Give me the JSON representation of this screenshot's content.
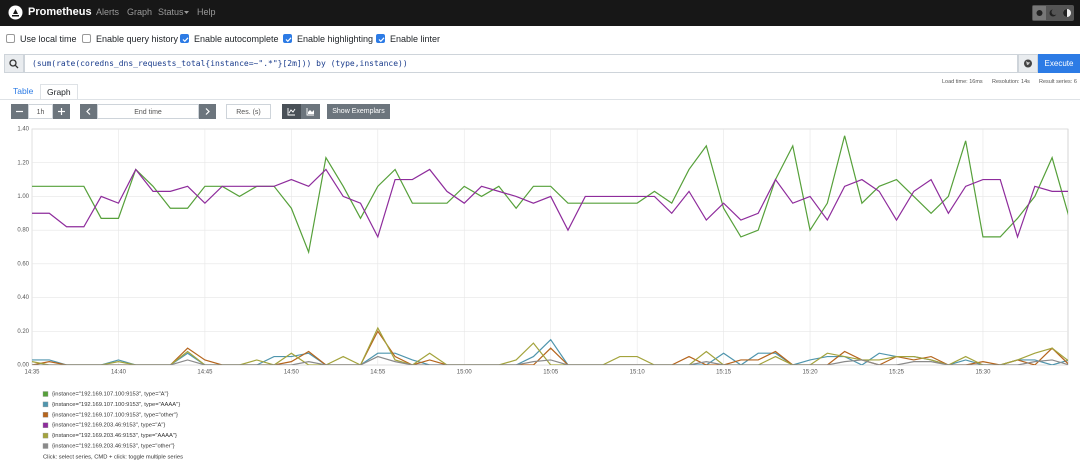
{
  "navbar": {
    "brand": "Prometheus",
    "links": [
      "Alerts",
      "Graph",
      "Status",
      "Help"
    ]
  },
  "options": [
    {
      "label": "Use local time",
      "checked": false
    },
    {
      "label": "Enable query history",
      "checked": false
    },
    {
      "label": "Enable autocomplete",
      "checked": true
    },
    {
      "label": "Enable highlighting",
      "checked": true
    },
    {
      "label": "Enable linter",
      "checked": true
    }
  ],
  "query": {
    "text": "(sum(rate(coredns_dns_requests_total{instance=~\".*\"}[2m])) by (type,instance))",
    "execute": "Execute"
  },
  "stats": [
    "Load time: 16ms",
    "Resolution: 14s",
    "Result series: 6"
  ],
  "tabs": [
    "Table",
    "Graph"
  ],
  "controls": {
    "range": "1h",
    "end_time": "End time",
    "resolution": "Res. (s)",
    "exemplars": "Show Exemplars"
  },
  "chart_data": {
    "type": "line",
    "categories": [
      "14:35",
      null,
      null,
      null,
      null,
      "14:40",
      null,
      null,
      null,
      null,
      "14:45",
      null,
      null,
      null,
      null,
      "14:50",
      null,
      null,
      null,
      null,
      "14:55",
      null,
      null,
      null,
      null,
      "15:00",
      null,
      null,
      null,
      null,
      "15:05",
      null,
      null,
      null,
      null,
      "15:10",
      null,
      null,
      null,
      null,
      "15:15",
      null,
      null,
      null,
      null,
      "15:20",
      null,
      null,
      null,
      null,
      "15:25",
      null,
      null,
      null,
      null,
      "15:30",
      null,
      null,
      null,
      null,
      null
    ],
    "series": [
      {
        "name": "{instance=\"192.169.107.100:9153\", type=\"A\"}",
        "color": "#56a03a",
        "values": [
          1.06,
          1.06,
          1.06,
          1.06,
          0.87,
          0.87,
          1.16,
          1.06,
          0.93,
          0.93,
          1.06,
          1.06,
          1.0,
          1.06,
          1.06,
          0.93,
          0.67,
          1.23,
          1.06,
          0.87,
          1.06,
          1.16,
          0.96,
          0.96,
          0.96,
          1.06,
          1.0,
          1.06,
          0.93,
          1.06,
          1.06,
          0.96,
          0.96,
          0.96,
          0.96,
          0.96,
          1.03,
          0.96,
          1.16,
          1.3,
          0.93,
          0.76,
          0.8,
          1.1,
          1.3,
          0.8,
          0.96,
          1.36,
          0.96,
          1.06,
          1.1,
          1.0,
          0.9,
          1.0,
          1.33,
          0.76,
          0.76,
          0.87,
          1.0,
          1.23,
          0.87
        ]
      },
      {
        "name": "{instance=\"192.169.107.100:9153\", type=\"AAAA\"}",
        "color": "#4f95ad",
        "values": [
          0.03,
          0.03,
          0,
          0,
          0,
          0.03,
          0,
          0,
          0,
          0.07,
          0,
          0,
          0,
          0,
          0.05,
          0.05,
          0.07,
          0,
          0,
          0,
          0.07,
          0.07,
          0.03,
          0,
          0,
          0,
          0,
          0,
          0,
          0.05,
          0.15,
          0,
          0,
          0,
          0,
          0,
          0,
          0,
          0,
          0,
          0.07,
          0,
          0.07,
          0.07,
          0,
          0.03,
          0.05,
          0.05,
          0,
          0.07,
          0.05,
          0.05,
          0.03,
          0,
          0.03,
          0,
          0,
          0.03,
          0.03,
          0,
          0.03
        ]
      },
      {
        "name": "{instance=\"192.169.107.100:9153\", type=\"other\"}",
        "color": "#b5651d",
        "values": [
          0,
          0.02,
          0,
          0,
          0,
          0,
          0,
          0,
          0,
          0.1,
          0.03,
          0,
          0,
          0,
          0,
          0.02,
          0.08,
          0,
          0,
          0,
          0.2,
          0.05,
          0,
          0.03,
          0,
          0,
          0,
          0,
          0,
          0,
          0.1,
          0,
          0,
          0,
          0,
          0,
          0,
          0,
          0.05,
          0,
          0,
          0.03,
          0.03,
          0.08,
          0,
          0,
          0,
          0.08,
          0.03,
          0,
          0.05,
          0.03,
          0.05,
          0,
          0,
          0.02,
          0,
          0.03,
          0,
          0.1,
          0
        ]
      },
      {
        "name": "{instance=\"192.169.203.46:9153\", type=\"A\"}",
        "color": "#8e2c9c",
        "values": [
          0.9,
          0.9,
          0.82,
          0.82,
          1.0,
          0.96,
          1.16,
          1.03,
          1.03,
          1.06,
          0.96,
          1.06,
          1.06,
          1.06,
          1.06,
          1.1,
          1.06,
          1.16,
          1.0,
          0.96,
          0.76,
          1.1,
          1.1,
          1.16,
          1.03,
          0.96,
          1.06,
          1.03,
          1.0,
          0.96,
          1.0,
          0.8,
          1.0,
          1.0,
          1.0,
          1.0,
          1.0,
          0.9,
          1.03,
          0.86,
          0.96,
          0.86,
          0.9,
          1.1,
          0.96,
          1.0,
          0.86,
          1.06,
          1.1,
          1.03,
          0.86,
          1.03,
          1.1,
          0.9,
          1.06,
          1.1,
          1.1,
          0.76,
          1.06,
          1.03,
          1.03
        ]
      },
      {
        "name": "{instance=\"192.169.203.46:9153\", type=\"AAAA\"}",
        "color": "#a3a33c",
        "values": [
          0.02,
          0,
          0,
          0,
          0,
          0.02,
          0,
          0,
          0,
          0.08,
          0,
          0,
          0,
          0.03,
          0,
          0.07,
          0,
          0,
          0.05,
          0,
          0.22,
          0.03,
          0,
          0.07,
          0,
          0,
          0,
          0,
          0.03,
          0.13,
          0,
          0,
          0,
          0,
          0.05,
          0.05,
          0,
          0,
          0,
          0.08,
          0,
          0,
          0,
          0.05,
          0,
          0,
          0.07,
          0.05,
          0.03,
          0.03,
          0.05,
          0.05,
          0.03,
          0,
          0.05,
          0,
          0,
          0.03,
          0.07,
          0.1,
          0.02
        ]
      },
      {
        "name": "{instance=\"192.169.203.46:9153\", type=\"other\"}",
        "color": "#8a8a8a",
        "values": [
          0,
          0,
          0,
          0,
          0,
          0,
          0,
          0,
          0,
          0.03,
          0,
          0,
          0,
          0,
          0,
          0,
          0.02,
          0,
          0,
          0,
          0.05,
          0.02,
          0,
          0,
          0,
          0,
          0,
          0,
          0,
          0.02,
          0.03,
          0,
          0,
          0,
          0,
          0,
          0,
          0,
          0,
          0.02,
          0,
          0,
          0,
          0,
          0,
          0,
          0,
          0.02,
          0.03,
          0,
          0,
          0.02,
          0.02,
          0,
          0,
          0,
          0,
          0,
          0.02,
          0.03,
          0
        ]
      }
    ],
    "ylim": [
      0,
      1.4
    ],
    "yticks": [
      {
        "value": 0,
        "label": "0.00"
      },
      {
        "value": 0.2,
        "label": "0.20"
      },
      {
        "value": 0.4,
        "label": "0.40"
      },
      {
        "value": 0.6,
        "label": "0.60"
      },
      {
        "value": 0.8,
        "label": "0.80"
      },
      {
        "value": 1,
        "label": "1.00"
      },
      {
        "value": 1.2,
        "label": "1.20"
      },
      {
        "value": 1.4,
        "label": "1.40"
      }
    ],
    "grid": true
  },
  "hint": "Click: select series, CMD + click: toggle multiple series"
}
